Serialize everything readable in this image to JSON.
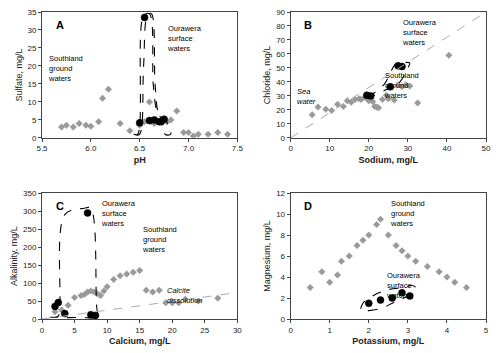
{
  "chart_data": [
    {
      "type": "scatter",
      "title": "A",
      "xlabel": "pH",
      "ylabel": "Sulfate, mg/L",
      "xlim": [
        5.5,
        7.5
      ],
      "ylim": [
        0,
        35
      ],
      "xticks": [
        5.5,
        {
          "value": 6.0,
          "label": "6.0"
        },
        6.5,
        {
          "value": 7.0,
          "label": "7.0"
        },
        7.5
      ],
      "yticks": [
        0,
        5,
        10,
        15,
        20,
        25,
        30,
        35
      ],
      "grid": false,
      "series": [
        {
          "type": "scatter",
          "marker": "diamond",
          "color": "#999999",
          "x": [
            5.7,
            5.75,
            5.82,
            5.88,
            5.95,
            6.0,
            6.08,
            6.12,
            6.18,
            6.3,
            6.4,
            6.5,
            6.55,
            6.6,
            6.62,
            6.65,
            6.7,
            6.75,
            6.78,
            6.82,
            6.88,
            6.95,
            7.0,
            7.05,
            7.1,
            7.2,
            7.3,
            7.4
          ],
          "values": [
            3.0,
            3.5,
            3.0,
            4.0,
            3.5,
            3.2,
            4.5,
            11.0,
            13.5,
            4.0,
            2.0,
            3.5,
            4.5,
            10.0,
            4.5,
            4.0,
            4.5,
            5.0,
            4.5,
            5.0,
            7.5,
            1.5,
            1.5,
            0.5,
            1.0,
            1.0,
            1.5,
            1.0
          ]
        },
        {
          "type": "scatter",
          "marker": "circle",
          "color": "black",
          "x": [
            6.5,
            6.55,
            6.6,
            6.65,
            6.7,
            6.72,
            6.75
          ],
          "values": [
            4.2,
            33.5,
            4.8,
            5.0,
            4.5,
            4.5,
            5.2
          ]
        },
        {
          "type": "envelope",
          "line_style": "dashed",
          "color": "black",
          "x": [
            6.44,
            6.46,
            6.5,
            6.54,
            6.58,
            6.62,
            6.66,
            6.7,
            6.76,
            6.8,
            6.82,
            6.8,
            6.76,
            6.72,
            6.68,
            6.64,
            6.6,
            6.54,
            6.48,
            6.44
          ],
          "values": [
            1.0,
            0.8,
            1.0,
            20.0,
            34.0,
            34.5,
            14.0,
            6.5,
            5.5,
            2.5,
            1.2,
            0.8,
            1.0,
            5.5,
            7.0,
            14.5,
            34.5,
            34.0,
            1.0,
            1.0
          ]
        }
      ],
      "annotations": [
        "Ourawera\nsurface\nwaters",
        "Southland\nground\nwaters"
      ]
    },
    {
      "type": "scatter",
      "title": "B",
      "xlabel": "Sodium, mg/L",
      "ylabel": "Chloride, mg/L",
      "xlim": [
        0,
        50
      ],
      "ylim": [
        0,
        90
      ],
      "xticks": [
        0,
        10,
        20,
        30,
        40,
        50
      ],
      "yticks": [
        0,
        10,
        20,
        30,
        40,
        50,
        60,
        70,
        80,
        90
      ],
      "grid": false,
      "series": [
        {
          "type": "scatter",
          "marker": "diamond",
          "color": "#999999",
          "x": [
            5.5,
            7.0,
            9.0,
            10.5,
            12.0,
            13.5,
            14.5,
            15.5,
            16.5,
            17.5,
            18.0,
            19.0,
            19.5,
            20.0,
            21.0,
            21.5,
            22.0,
            22.5,
            23.5,
            24.5,
            25.0,
            26.5,
            27.5,
            28.5,
            29.5,
            30.5,
            32.5,
            40.5
          ],
          "values": [
            16.5,
            22.0,
            20.5,
            19.5,
            24.0,
            22.5,
            26.5,
            25.5,
            27.5,
            28.0,
            27.5,
            29.0,
            28.5,
            26.5,
            26.0,
            22.5,
            22.0,
            21.5,
            27.5,
            30.5,
            28.0,
            27.0,
            38.0,
            36.5,
            38.0,
            37.0,
            25.0,
            59.0
          ]
        },
        {
          "type": "scatter",
          "marker": "circle",
          "color": "black",
          "x": [
            19.5,
            20.5,
            25.5,
            27.5,
            28.5
          ],
          "values": [
            30.5,
            30.0,
            36.5,
            51.5,
            51.0
          ]
        },
        {
          "type": "envelope",
          "line_style": "dashed",
          "color": "black",
          "x": [
            18.5,
            19.5,
            21.0,
            24.5,
            27.5,
            30.0,
            30.5,
            29.5,
            27.0,
            24.0,
            21.0,
            19.5,
            18.5
          ],
          "values": [
            28.5,
            28.5,
            30.0,
            34.5,
            38.5,
            50.0,
            53.5,
            54.0,
            53.0,
            38.5,
            31.5,
            29.5,
            28.5
          ]
        },
        {
          "type": "line",
          "line_style": "dashed",
          "color": "#aaaaaa",
          "x": [
            0,
            50
          ],
          "values": [
            0,
            90
          ]
        }
      ],
      "annotations": [
        "Ourawera\nsurface\nwaters",
        "Southland\nground\nwaters",
        "Sea\nwater"
      ]
    },
    {
      "type": "scatter",
      "title": "C",
      "xlabel": "Calcium, mg/L",
      "ylabel": "Alkalinity, mg/L",
      "xlim": [
        0,
        30
      ],
      "ylim": [
        0,
        350
      ],
      "xticks": [
        0,
        5,
        10,
        15,
        20,
        25,
        30
      ],
      "yticks": [
        0,
        50,
        100,
        150,
        200,
        250,
        300,
        350
      ],
      "grid": false,
      "series": [
        {
          "type": "scatter",
          "marker": "diamond",
          "color": "#999999",
          "x": [
            2.0,
            3.0,
            4.0,
            5.0,
            6.0,
            6.5,
            7.0,
            7.5,
            8.0,
            8.5,
            9.0,
            9.5,
            10.0,
            11.0,
            12.0,
            13.0,
            14.0,
            15.0,
            16.0,
            17.0,
            18.0,
            19.0,
            20.0,
            21.0,
            22.0,
            24.0,
            27.0
          ],
          "values": [
            20.0,
            25.0,
            38.0,
            60.0,
            65.0,
            68.0,
            75.0,
            78.0,
            75.0,
            70.0,
            65.0,
            78.0,
            90.0,
            110.0,
            120.0,
            125.0,
            130.0,
            135.0,
            80.0,
            75.0,
            80.0,
            45.0,
            45.0,
            45.0,
            55.0,
            50.0,
            58.0
          ]
        },
        {
          "type": "scatter",
          "marker": "circle",
          "color": "black",
          "x": [
            2.0,
            2.5,
            3.5,
            7.0,
            7.5,
            8.2
          ],
          "values": [
            35.0,
            46.0,
            15.0,
            295.0,
            12.0,
            10.0
          ]
        },
        {
          "type": "envelope",
          "line_style": "dashed",
          "color": "black",
          "x": [
            1.2,
            1.5,
            2.0,
            2.5,
            3.5,
            6.5,
            7.5,
            8.5,
            8.8,
            8.7,
            8.2,
            7.8,
            7.2,
            6.5,
            3.5,
            2.5,
            1.8,
            1.2
          ],
          "values": [
            5.0,
            5.0,
            5.0,
            8.0,
            290.0,
            308.0,
            308.0,
            20.0,
            8.0,
            5.0,
            3.0,
            3.0,
            3.0,
            4.0,
            4.0,
            5.0,
            5.0,
            5.0
          ]
        },
        {
          "type": "line",
          "line_style": "dashed",
          "color": "#aaaaaa",
          "x": [
            0,
            30
          ],
          "values": [
            0,
            73.5
          ]
        }
      ],
      "annotations": [
        "Ourawera\nsurface\nwaters",
        "Southland\nground\nwaters",
        "Calcite\ndissolution"
      ]
    },
    {
      "type": "scatter",
      "title": "D",
      "xlabel": "Potassium, mg/L",
      "ylabel": "Magnesium, mg/L",
      "xlim": [
        0,
        5
      ],
      "ylim": [
        0,
        12
      ],
      "xticks": [
        0,
        1,
        2,
        3,
        4,
        5
      ],
      "yticks": [
        0,
        2,
        4,
        6,
        8,
        10,
        12
      ],
      "grid": false,
      "series": [
        {
          "type": "scatter",
          "marker": "diamond",
          "color": "#999999",
          "x": [
            0.5,
            0.8,
            1.0,
            1.2,
            1.3,
            1.5,
            1.7,
            1.85,
            2.0,
            2.2,
            2.3,
            2.5,
            2.7,
            2.85,
            3.0,
            3.2,
            3.5,
            3.8,
            4.0,
            4.2,
            4.5
          ],
          "values": [
            3.0,
            4.5,
            3.5,
            4.2,
            5.5,
            6.0,
            7.0,
            7.5,
            8.0,
            9.0,
            9.5,
            8.0,
            7.0,
            6.5,
            6.0,
            5.5,
            5.0,
            4.5,
            4.0,
            3.5,
            3.0
          ]
        },
        {
          "type": "scatter",
          "marker": "circle",
          "color": "black",
          "x": [
            2.0,
            2.3,
            2.6,
            2.85,
            3.05
          ],
          "values": [
            1.5,
            1.8,
            2.0,
            2.5,
            2.2
          ]
        },
        {
          "type": "envelope",
          "line_style": "dashed",
          "color": "black",
          "x": [
            1.8,
            2.0,
            2.3,
            2.6,
            2.9,
            3.1,
            3.2,
            3.1,
            2.9,
            2.5,
            2.1,
            1.85,
            1.8
          ],
          "values": [
            0.8,
            0.8,
            1.0,
            1.5,
            2.0,
            2.5,
            3.0,
            3.2,
            3.0,
            2.8,
            2.2,
            1.5,
            0.8
          ]
        }
      ],
      "annotations": [
        "Southland\nground\nwaters",
        "Ourawera\nsurface\nwaters"
      ]
    }
  ]
}
